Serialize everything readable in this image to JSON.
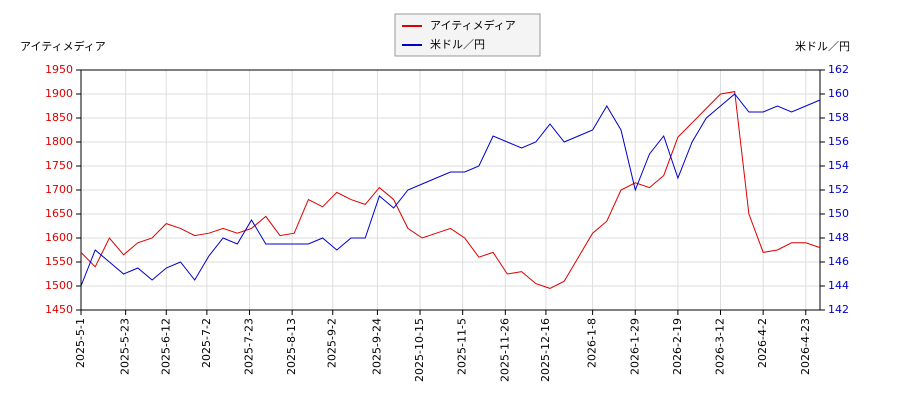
{
  "chart_data": {
    "type": "line",
    "ylabel": "アイティメディア",
    "y2label": "米ドル／円",
    "x": [
      "2025-05-01",
      "2025-05-08",
      "2025-05-15",
      "2025-05-22",
      "2025-05-29",
      "2025-06-05",
      "2025-06-12",
      "2025-06-19",
      "2025-06-26",
      "2025-07-03",
      "2025-07-10",
      "2025-07-17",
      "2025-07-24",
      "2025-07-31",
      "2025-08-07",
      "2025-08-14",
      "2025-08-21",
      "2025-08-28",
      "2025-09-04",
      "2025-09-11",
      "2025-09-18",
      "2025-09-25",
      "2025-10-02",
      "2025-10-09",
      "2025-10-16",
      "2025-10-23",
      "2025-10-30",
      "2025-11-06",
      "2025-11-13",
      "2025-11-20",
      "2025-11-27",
      "2025-12-04",
      "2025-12-11",
      "2025-12-18",
      "2025-12-25",
      "2026-01-01",
      "2026-01-08",
      "2026-01-15",
      "2026-01-22",
      "2026-01-29",
      "2026-02-05",
      "2026-02-12",
      "2026-02-19",
      "2026-02-26",
      "2026-03-05",
      "2026-03-12",
      "2026-03-19",
      "2026-03-26",
      "2026-04-02",
      "2026-04-09",
      "2026-04-16",
      "2026-04-23",
      "2026-04-30"
    ],
    "series": [
      {
        "name": "アイティメディア",
        "color": "#dd0000",
        "values": [
          1570,
          1540,
          1600,
          1565,
          1590,
          1600,
          1630,
          1620,
          1605,
          1610,
          1620,
          1610,
          1620,
          1645,
          1605,
          1610,
          1680,
          1665,
          1695,
          1680,
          1670,
          1705,
          1680,
          1620,
          1600,
          1610,
          1620,
          1600,
          1560,
          1570,
          1525,
          1530,
          1505,
          1495,
          1510,
          1560,
          1610,
          1635,
          1700,
          1715,
          1705,
          1730,
          1810,
          1840,
          1870,
          1900,
          1905,
          1650,
          1570,
          1575,
          1590,
          1590,
          1580
        ]
      },
      {
        "name": "米ドル／円",
        "color": "#0000cc",
        "axis": "y2",
        "values": [
          144,
          147,
          146,
          145,
          145.5,
          144.5,
          145.5,
          146,
          144.5,
          146.5,
          148,
          147.5,
          149.5,
          147.5,
          147.5,
          147.5,
          147.5,
          148,
          147,
          148,
          148,
          151.5,
          150.5,
          152,
          152.5,
          153,
          153.5,
          153.5,
          154,
          156.5,
          156,
          155.5,
          156,
          157.5,
          156,
          156.5,
          157,
          159,
          157,
          152,
          155,
          156.5,
          153,
          156,
          158,
          159,
          160,
          158.5,
          158.5,
          159,
          158.5,
          159,
          159.5
        ]
      }
    ],
    "xlim": [
      "2025-05-01",
      "2026-04-30"
    ],
    "xticks": [
      {
        "value": "2025-05-01",
        "label": "2025-5-1"
      },
      {
        "value": "2025-05-23",
        "label": "2025-5-23"
      },
      {
        "value": "2025-06-12",
        "label": "2025-6-12"
      },
      {
        "value": "2025-07-02",
        "label": "2025-7-2"
      },
      {
        "value": "2025-07-23",
        "label": "2025-7-23"
      },
      {
        "value": "2025-08-13",
        "label": "2025-8-13"
      },
      {
        "value": "2025-09-02",
        "label": "2025-9-2"
      },
      {
        "value": "2025-09-24",
        "label": "2025-9-24"
      },
      {
        "value": "2025-10-15",
        "label": "2025-10-15"
      },
      {
        "value": "2025-11-05",
        "label": "2025-11-5"
      },
      {
        "value": "2025-11-26",
        "label": "2025-11-26"
      },
      {
        "value": "2025-12-16",
        "label": "2025-12-16"
      },
      {
        "value": "2026-01-08",
        "label": "2026-1-8"
      },
      {
        "value": "2026-01-29",
        "label": "2026-1-29"
      },
      {
        "value": "2026-02-19",
        "label": "2026-2-19"
      },
      {
        "value": "2026-03-12",
        "label": "2026-3-12"
      },
      {
        "value": "2026-04-02",
        "label": "2026-4-2"
      },
      {
        "value": "2026-04-23",
        "label": "2026-4-23"
      }
    ],
    "ylim": [
      1450,
      1950
    ],
    "yticks": [
      1450,
      1500,
      1550,
      1600,
      1650,
      1700,
      1750,
      1800,
      1850,
      1900,
      1950
    ],
    "y2lim": [
      142,
      162
    ],
    "y2ticks": [
      142,
      144,
      146,
      148,
      150,
      152,
      154,
      156,
      158,
      160,
      162
    ],
    "grid": true,
    "legend": "top"
  }
}
